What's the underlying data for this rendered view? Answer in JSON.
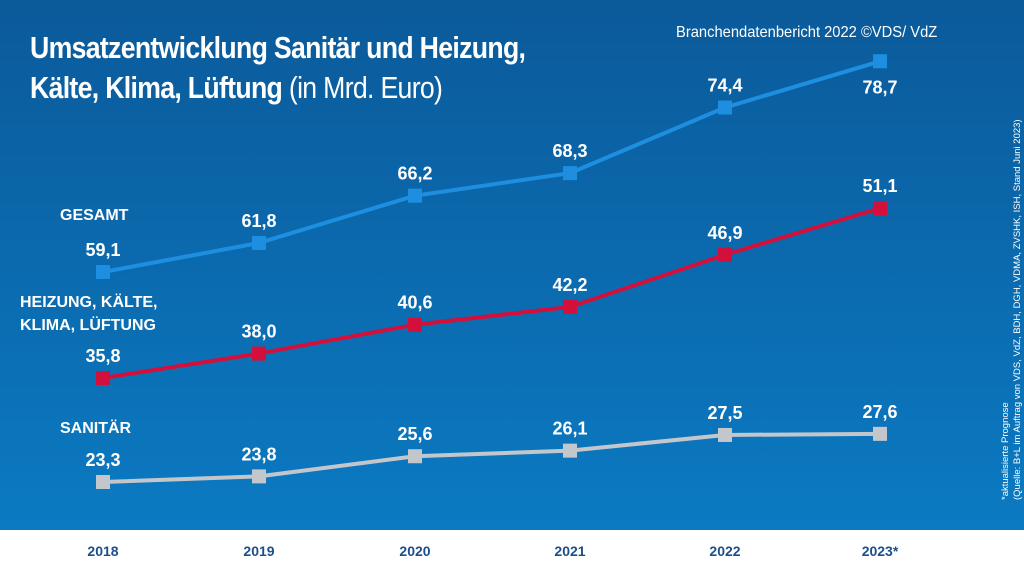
{
  "header": {
    "title_bold_line1": "Umsatzentwicklung Sanitär und Heizung,",
    "title_bold_line2": "Kälte, Klima, Lüftung",
    "title_unit": "(in Mrd. Euro)",
    "brand": "Branchendatenbericht 2022 ©VDS/ VdZ"
  },
  "footnote": {
    "line1": "*aktualisierte Prognose",
    "line2": "(Quelle: B+L im Auftrag von VDS, VdZ, BDH, DGH, VDMA, ZVSHK, ISH, Stand Juni 2023)"
  },
  "chart_data": {
    "type": "line",
    "title": "Umsatzentwicklung Sanitär und Heizung, Kälte, Klima, Lüftung (in Mrd. Euro)",
    "categories": [
      "2018",
      "2019",
      "2020",
      "2021",
      "2022",
      "2023*"
    ],
    "series": [
      {
        "name": "GESAMT",
        "values": [
          59.1,
          61.8,
          66.2,
          68.3,
          74.4,
          78.7
        ],
        "labels": [
          "59,1",
          "61,8",
          "66,2",
          "68,3",
          "74,4",
          "78,7"
        ],
        "color": "#1e8fe0"
      },
      {
        "name": "HEIZUNG, KÄLTE, KLIMA, LÜFTUNG",
        "name_line1": "HEIZUNG, KÄLTE,",
        "name_line2": "KLIMA, LÜFTUNG",
        "values": [
          35.8,
          38.0,
          40.6,
          42.2,
          46.9,
          51.1
        ],
        "labels": [
          "35,8",
          "38,0",
          "40,6",
          "42,2",
          "46,9",
          "51,1"
        ],
        "color": "#d3103c"
      },
      {
        "name": "SANITÄR",
        "values": [
          23.3,
          23.8,
          25.6,
          26.1,
          27.5,
          27.6
        ],
        "labels": [
          "23,3",
          "23,8",
          "25,6",
          "26,1",
          "27,5",
          "27,6"
        ],
        "color": "#c3c7cc"
      }
    ],
    "axis_broken": true,
    "grid": false,
    "year_label_color": "#1b4f8c"
  }
}
